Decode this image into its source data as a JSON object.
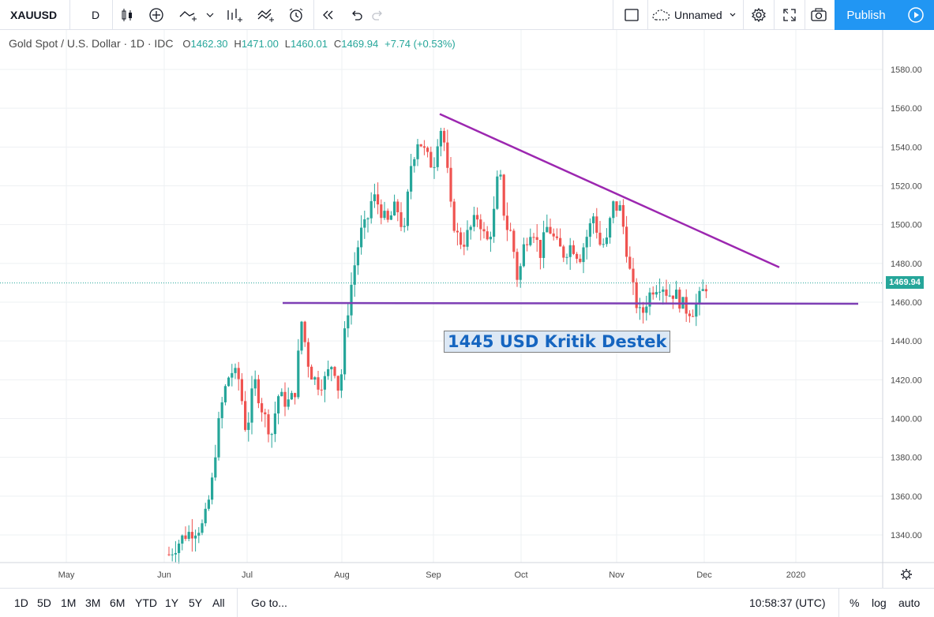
{
  "toolbar": {
    "symbol": "XAUUSD",
    "interval": "D",
    "layout_name": "Unnamed",
    "publish_label": "Publish",
    "icons": [
      "candles-icon",
      "add-indicator-icon",
      "line-tool-icon",
      "indicators-icon",
      "compare-icon",
      "alert-icon",
      "replay-icon",
      "undo-icon",
      "redo-icon",
      "rectangle-icon",
      "cloud-icon",
      "gear-icon",
      "fullscreen-icon",
      "camera-icon",
      "play-icon"
    ]
  },
  "legend": {
    "title": "Gold Spot / U.S. Dollar · 1D · IDC",
    "o_label": "O",
    "o": "1462.30",
    "h_label": "H",
    "h": "1471.00",
    "l_label": "L",
    "l": "1460.01",
    "c_label": "C",
    "c": "1469.94",
    "change": "+7.74 (+0.53%)"
  },
  "annotation": "1445 USD Kritik Destek",
  "last_price": "1469.94",
  "colors": {
    "up": "#26a69a",
    "down": "#ef5350",
    "trend": "#9c27b0",
    "accent": "#2196f3"
  },
  "chart_data": {
    "type": "candlestick",
    "y_ticks": [
      "1580.00",
      "1560.00",
      "1540.00",
      "1520.00",
      "1500.00",
      "1480.00",
      "1460.00",
      "1440.00",
      "1420.00",
      "1400.00",
      "1380.00",
      "1360.00",
      "1340.00"
    ],
    "x_ticks": [
      "May",
      "Jun",
      "Jul",
      "Aug",
      "Sep",
      "Oct",
      "Nov",
      "Dec",
      "2020"
    ],
    "ylim": [
      1330,
      1590
    ],
    "resistance_line": {
      "from": 1557,
      "to": 1478
    },
    "support_line": {
      "value": 1460
    },
    "last_price": 1469.94
  },
  "bottombar": {
    "ranges": [
      "1D",
      "5D",
      "1M",
      "3M",
      "6M",
      "YTD",
      "1Y",
      "5Y",
      "All"
    ],
    "goto": "Go to...",
    "time": "10:58:37 (UTC)",
    "percent": "%",
    "log": "log",
    "auto": "auto"
  }
}
